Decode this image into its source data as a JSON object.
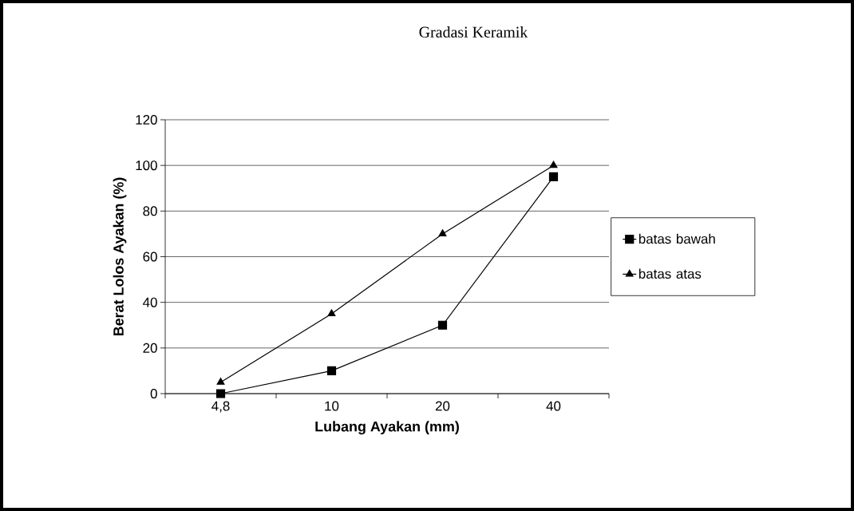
{
  "chart_data": {
    "type": "line",
    "title": "Gradasi Keramik",
    "xlabel": "Lubang Ayakan (mm)",
    "ylabel": "Berat Lolos Ayakan (%)",
    "categories": [
      "4,8",
      "10",
      "20",
      "40"
    ],
    "series": [
      {
        "name": "batas bawah",
        "color": "#000000",
        "marker": "square",
        "values": [
          0,
          10,
          30,
          95
        ]
      },
      {
        "name": "batas atas",
        "color": "#000000",
        "marker": "triangle",
        "values": [
          5,
          35,
          70,
          100
        ]
      }
    ],
    "ylim": [
      0,
      120
    ],
    "yticks": [
      0,
      20,
      40,
      60,
      80,
      100,
      120
    ],
    "grid": "y",
    "legend": "right",
    "line_style": "solid"
  }
}
